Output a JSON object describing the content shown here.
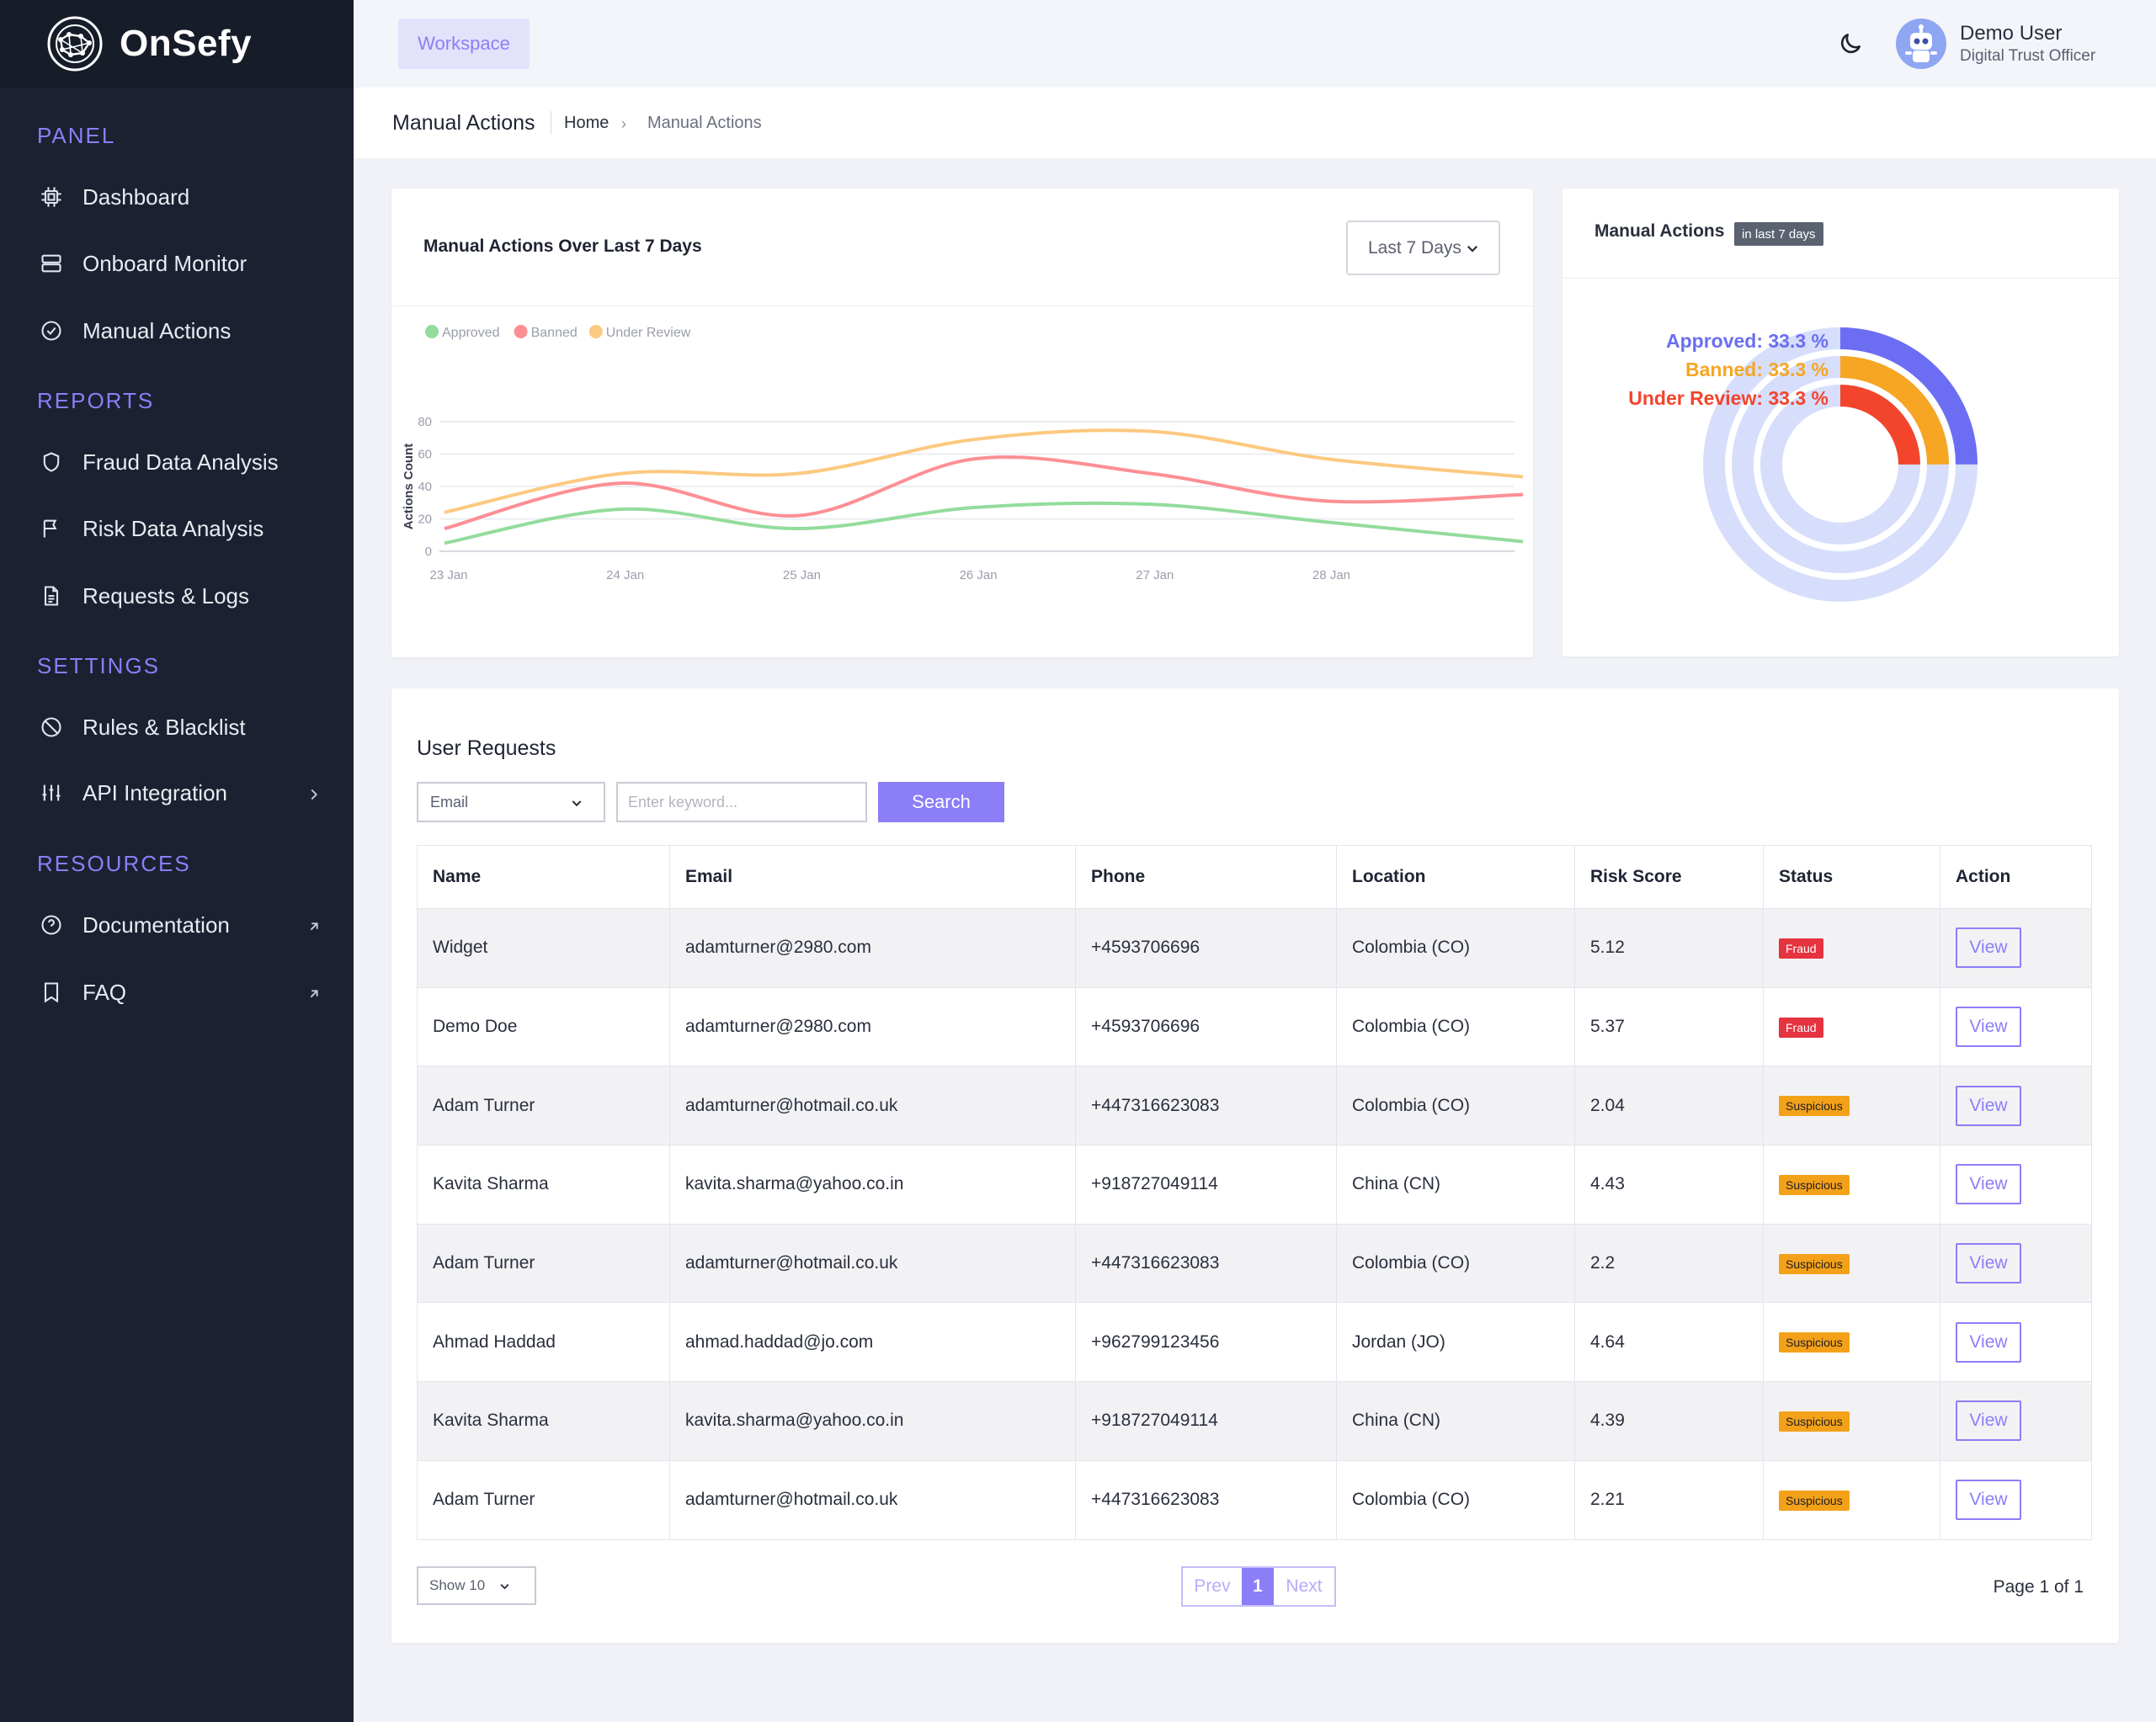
{
  "brand": {
    "name": "OnSefy"
  },
  "sidebar": {
    "sections": [
      {
        "title": "PANEL",
        "items": [
          {
            "label": "Dashboard",
            "icon": "cpu-icon"
          },
          {
            "label": "Onboard Monitor",
            "icon": "server-icon"
          },
          {
            "label": "Manual Actions",
            "icon": "check-circle-icon"
          }
        ]
      },
      {
        "title": "REPORTS",
        "items": [
          {
            "label": "Fraud Data Analysis",
            "icon": "shield-icon"
          },
          {
            "label": "Risk Data Analysis",
            "icon": "flag-icon"
          },
          {
            "label": "Requests & Logs",
            "icon": "document-icon"
          }
        ]
      },
      {
        "title": "SETTINGS",
        "items": [
          {
            "label": "Rules & Blacklist",
            "icon": "ban-icon"
          },
          {
            "label": "API Integration",
            "icon": "sliders-icon"
          }
        ]
      },
      {
        "title": "RESOURCES",
        "items": [
          {
            "label": "Documentation",
            "icon": "help-circle-icon"
          },
          {
            "label": "FAQ",
            "icon": "bookmark-icon"
          }
        ]
      }
    ]
  },
  "topbar": {
    "workspace_label": "Workspace",
    "theme_icon": "moon-icon",
    "user": {
      "name": "Demo User",
      "role": "Digital Trust Officer",
      "avatar_icon": "robot-avatar-icon"
    }
  },
  "breadcrumb": {
    "page_title": "Manual Actions",
    "home": "Home",
    "current": "Manual Actions"
  },
  "line_chart_card": {
    "title": "Manual Actions Over Last 7 Days",
    "range_label": "Last 7 Days"
  },
  "donut_card": {
    "title": "Manual Actions",
    "badge": "in last 7 days"
  },
  "chart_data": [
    {
      "type": "line",
      "title": "Manual Actions Over Last 7 Days",
      "xlabel": "",
      "ylabel": "Actions Count",
      "ylim": [
        0,
        80
      ],
      "yticks": [
        "0",
        "20",
        "40",
        "60",
        "80"
      ],
      "x": [
        "23 Jan",
        "24 Jan",
        "25 Jan",
        "26 Jan",
        "27 Jan",
        "28 Jan",
        ""
      ],
      "grid": true,
      "legend_position": "top-left",
      "series": [
        {
          "name": "Approved",
          "color": "#93dc9c",
          "values": [
            5,
            26,
            14,
            27,
            29,
            18,
            6
          ]
        },
        {
          "name": "Banned",
          "color": "#fd8f94",
          "values": [
            14,
            42,
            22,
            57,
            48,
            31,
            35
          ]
        },
        {
          "name": "Under Review",
          "color": "#fcc980",
          "values": [
            24,
            48,
            48,
            69,
            74,
            57,
            46
          ]
        }
      ]
    },
    {
      "type": "pie",
      "title": "Manual Actions",
      "series": [
        {
          "name": "Approved",
          "label": "Approved: 33.3 %",
          "value": 33.3,
          "color": "#6b6ef2",
          "track": "#d6defb"
        },
        {
          "name": "Banned",
          "label": "Banned: 33.3 %",
          "value": 33.3,
          "color": "#f6a623",
          "track": "#d6defb"
        },
        {
          "name": "Under Review",
          "label": "Under Review: 33.3 %",
          "value": 33.3,
          "color": "#f2452c",
          "track": "#d6defb"
        }
      ]
    }
  ],
  "requests": {
    "title": "User Requests",
    "filter_field": "Email",
    "keyword_placeholder": "Enter keyword...",
    "search_label": "Search",
    "columns": [
      "Name",
      "Email",
      "Phone",
      "Location",
      "Risk Score",
      "Status",
      "Action"
    ],
    "rows": [
      {
        "name": "Widget",
        "email": "adamturner@2980.com",
        "phone": "+4593706696",
        "location": "Colombia (CO)",
        "risk": "5.12",
        "status": "Fraud",
        "action": "View"
      },
      {
        "name": "Demo Doe",
        "email": "adamturner@2980.com",
        "phone": "+4593706696",
        "location": "Colombia (CO)",
        "risk": "5.37",
        "status": "Fraud",
        "action": "View"
      },
      {
        "name": "Adam Turner",
        "email": "adamturner@hotmail.co.uk",
        "phone": "+447316623083",
        "location": "Colombia (CO)",
        "risk": "2.04",
        "status": "Suspicious",
        "action": "View"
      },
      {
        "name": "Kavita Sharma",
        "email": "kavita.sharma@yahoo.co.in",
        "phone": "+918727049114",
        "location": "China (CN)",
        "risk": "4.43",
        "status": "Suspicious",
        "action": "View"
      },
      {
        "name": "Adam Turner",
        "email": "adamturner@hotmail.co.uk",
        "phone": "+447316623083",
        "location": "Colombia (CO)",
        "risk": "2.2",
        "status": "Suspicious",
        "action": "View"
      },
      {
        "name": "Ahmad Haddad",
        "email": "ahmad.haddad@jo.com",
        "phone": "+962799123456",
        "location": "Jordan (JO)",
        "risk": "4.64",
        "status": "Suspicious",
        "action": "View"
      },
      {
        "name": "Kavita Sharma",
        "email": "kavita.sharma@yahoo.co.in",
        "phone": "+918727049114",
        "location": "China (CN)",
        "risk": "4.39",
        "status": "Suspicious",
        "action": "View"
      },
      {
        "name": "Adam Turner",
        "email": "adamturner@hotmail.co.uk",
        "phone": "+447316623083",
        "location": "Colombia (CO)",
        "risk": "2.21",
        "status": "Suspicious",
        "action": "View"
      }
    ],
    "status_colors": {
      "Fraud": "#e5333f",
      "Suspicious": "#f4a11a"
    },
    "show_label": "Show 10",
    "pager": {
      "prev": "Prev",
      "current": "1",
      "next": "Next"
    },
    "page_info": "Page 1 of 1"
  },
  "colors": {
    "accent": "#8c7ef7",
    "sidebar_bg": "#1b2130"
  }
}
